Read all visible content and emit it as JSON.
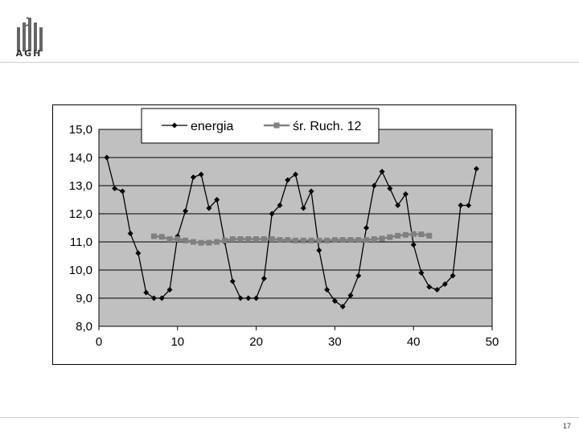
{
  "header": {
    "logo_text": "AGH"
  },
  "footer": {
    "page_number": "17"
  },
  "colors": {
    "plot_bg": "#c0c0c0",
    "energia": "#000000",
    "ruch": "#808080",
    "grid": "#000000"
  },
  "chart_data": {
    "type": "line",
    "xlim": [
      0,
      50
    ],
    "ylim": [
      8,
      15
    ],
    "xticks": [
      "0",
      "10",
      "20",
      "30",
      "40",
      "50"
    ],
    "yticks": [
      "8,0",
      "9,0",
      "10,0",
      "11,0",
      "12,0",
      "13,0",
      "14,0",
      "15,0"
    ],
    "grid": "horizontal",
    "legend_position": "top",
    "series": [
      {
        "name": "energia",
        "marker": "diamond",
        "x": [
          1,
          2,
          3,
          4,
          5,
          6,
          7,
          8,
          9,
          10,
          11,
          12,
          13,
          14,
          15,
          16,
          17,
          18,
          19,
          20,
          21,
          22,
          23,
          24,
          25,
          26,
          27,
          28,
          29,
          30,
          31,
          32,
          33,
          34,
          35,
          36,
          37,
          38,
          39,
          40,
          41,
          42,
          43,
          44,
          45,
          46,
          47,
          48
        ],
        "y": [
          14.0,
          12.9,
          12.8,
          11.3,
          10.6,
          9.2,
          9.0,
          9.0,
          9.3,
          11.2,
          12.1,
          13.3,
          13.4,
          12.2,
          12.5,
          11.0,
          9.6,
          9.0,
          9.0,
          9.0,
          9.7,
          12.0,
          12.3,
          13.2,
          13.4,
          12.2,
          12.8,
          10.7,
          9.3,
          8.9,
          8.7,
          9.1,
          9.8,
          11.5,
          13.0,
          13.5,
          12.9,
          12.3,
          12.7,
          10.9,
          9.9,
          9.4,
          9.3,
          9.5,
          9.8,
          12.3,
          12.3,
          13.6
        ]
      },
      {
        "name": "śr. Ruch. 12",
        "marker": "square",
        "x": [
          7,
          8,
          9,
          10,
          11,
          12,
          13,
          14,
          15,
          16,
          17,
          18,
          19,
          20,
          21,
          22,
          23,
          24,
          25,
          26,
          27,
          28,
          29,
          30,
          31,
          32,
          33,
          34,
          35,
          36,
          37,
          38,
          39,
          40,
          41,
          42
        ],
        "y": [
          11.2,
          11.18,
          11.1,
          11.1,
          11.05,
          11.0,
          10.97,
          10.97,
          11.0,
          11.05,
          11.1,
          11.1,
          11.1,
          11.1,
          11.1,
          11.1,
          11.07,
          11.07,
          11.05,
          11.05,
          11.05,
          11.05,
          11.05,
          11.07,
          11.07,
          11.07,
          11.07,
          11.07,
          11.1,
          11.12,
          11.17,
          11.22,
          11.25,
          11.28,
          11.27,
          11.22
        ]
      }
    ]
  }
}
